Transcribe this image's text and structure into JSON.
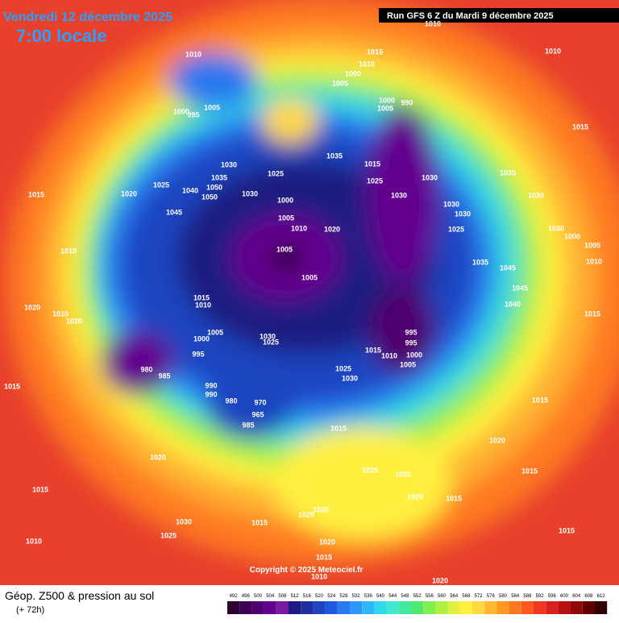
{
  "header": {
    "date": "Vendredi 12 décembre 2025",
    "time": "7:00 locale",
    "run": "Run GFS 6 Z du Mardi 9 décembre 2025"
  },
  "footer": {
    "title": "Géop. Z500 & pression au sol",
    "subtitle": "(+ 72h)",
    "copyright": "Copyright © 2025 Meteociel.fr"
  },
  "legend": {
    "values": [
      492,
      496,
      500,
      504,
      508,
      512,
      516,
      520,
      524,
      528,
      532,
      536,
      540,
      544,
      548,
      552,
      556,
      560,
      564,
      568,
      572,
      576,
      580,
      584,
      588,
      592,
      596,
      600,
      604,
      608,
      612
    ],
    "colors": [
      "#2b0033",
      "#3d0050",
      "#500070",
      "#640090",
      "#7a1aa0",
      "#1a1a80",
      "#1e2ea0",
      "#1e44c0",
      "#1e5ae0",
      "#2a78f0",
      "#2e96f8",
      "#2eb8f8",
      "#30d8f0",
      "#40e8d0",
      "#40e8a0",
      "#50e870",
      "#80f050",
      "#b0f040",
      "#e0f040",
      "#fff040",
      "#ffd840",
      "#ffb830",
      "#ff9820",
      "#ff7820",
      "#ff5820",
      "#f03820",
      "#d82020",
      "#b81010",
      "#900808",
      "#600000",
      "#300000"
    ]
  },
  "isobars": [
    1010,
    1015,
    1010,
    1000,
    1005,
    1010,
    1005,
    1000,
    995,
    1000,
    1005,
    990,
    1015,
    1035,
    1015,
    1030,
    1025,
    1025,
    1035,
    1040,
    1050,
    1050,
    1030,
    1020,
    1015,
    1025,
    1030,
    1035,
    1030,
    1000,
    1030,
    1030,
    1030,
    1045,
    1005,
    1010,
    1020,
    1025,
    1030,
    1000,
    1005,
    1010,
    1005,
    1035,
    1045,
    1010,
    1005,
    1045,
    1015,
    1010,
    1040,
    1020,
    1010,
    1020,
    1015,
    1005,
    1000,
    1030,
    1025,
    995,
    995,
    1015,
    1010,
    995,
    1000,
    1005,
    980,
    1025,
    1030,
    985,
    990,
    990,
    1015,
    980,
    970,
    965,
    985,
    1015,
    1015,
    1020,
    1020,
    1025,
    1020,
    1015,
    1015,
    1020,
    1015,
    1030,
    1020,
    1020,
    1015,
    1025,
    1015,
    1010,
    1020,
    1015,
    1010,
    1020,
    1010
  ]
}
